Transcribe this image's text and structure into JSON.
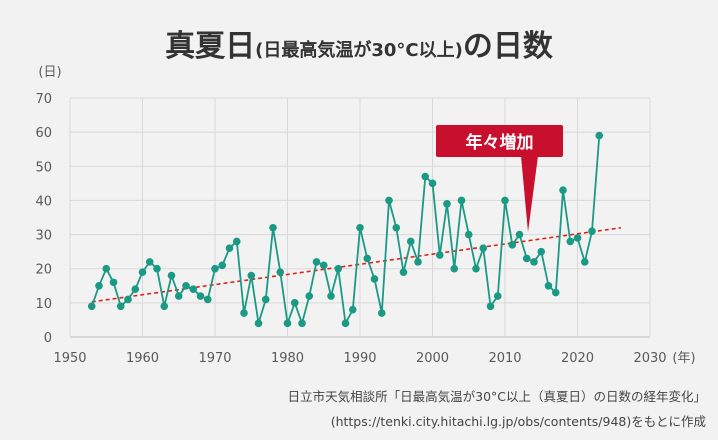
{
  "title": {
    "main": "真夏日",
    "sub": "(日最高気温が30°C以上)",
    "tail": "の日数"
  },
  "source_line1": "日立市天気相談所「日最高気温が30°C以上（真夏日）の日数の経年変化」",
  "source_line2": "(https://tenki.city.hitachi.lg.jp/obs/contents/948)をもとに作成",
  "chart_data": {
    "type": "line",
    "ylabel": "(日)",
    "xlabel": "(年)",
    "xlim": [
      1950,
      2030
    ],
    "ylim": [
      0,
      70
    ],
    "x_ticks": [
      1950,
      1960,
      1970,
      1980,
      1990,
      2000,
      2010,
      2020,
      2030
    ],
    "y_ticks": [
      0,
      10,
      20,
      30,
      40,
      50,
      60,
      70
    ],
    "grid": true,
    "annotation": "年々増加",
    "colors": {
      "series": "#1a9a84",
      "trend": "#d9261c",
      "callout": "#c8102e"
    },
    "series": [
      {
        "x": [
          1953,
          1954,
          1955,
          1956,
          1957,
          1958,
          1959,
          1960,
          1961,
          1962,
          1963,
          1964,
          1965,
          1966,
          1967,
          1968,
          1969,
          1970,
          1971,
          1972,
          1973,
          1974,
          1975,
          1976,
          1977,
          1978,
          1979,
          1980,
          1981,
          1982,
          1983,
          1984,
          1985,
          1986,
          1987,
          1988,
          1989,
          1990,
          1991,
          1992,
          1993,
          1994,
          1995,
          1996,
          1997,
          1998,
          1999,
          2000,
          2001,
          2002,
          2003,
          2004,
          2005,
          2006,
          2007,
          2008,
          2009,
          2010,
          2011,
          2012,
          2013,
          2014,
          2015,
          2016,
          2017,
          2018,
          2019,
          2020,
          2021,
          2022,
          2023
        ],
        "values": [
          9,
          15,
          20,
          16,
          9,
          11,
          14,
          19,
          22,
          20,
          9,
          18,
          12,
          15,
          14,
          12,
          11,
          20,
          21,
          26,
          28,
          7,
          18,
          4,
          11,
          32,
          19,
          4,
          10,
          4,
          12,
          22,
          21,
          12,
          20,
          4,
          8,
          32,
          23,
          17,
          7,
          40,
          32,
          19,
          28,
          22,
          47,
          45,
          24,
          39,
          20,
          40,
          30,
          20,
          26,
          9,
          12,
          40,
          27,
          30,
          23,
          22,
          25,
          15,
          13,
          43,
          28,
          29,
          22,
          31,
          59
        ]
      }
    ],
    "trend": {
      "x": [
        1953,
        2026
      ],
      "values": [
        10.3,
        32
      ]
    }
  }
}
